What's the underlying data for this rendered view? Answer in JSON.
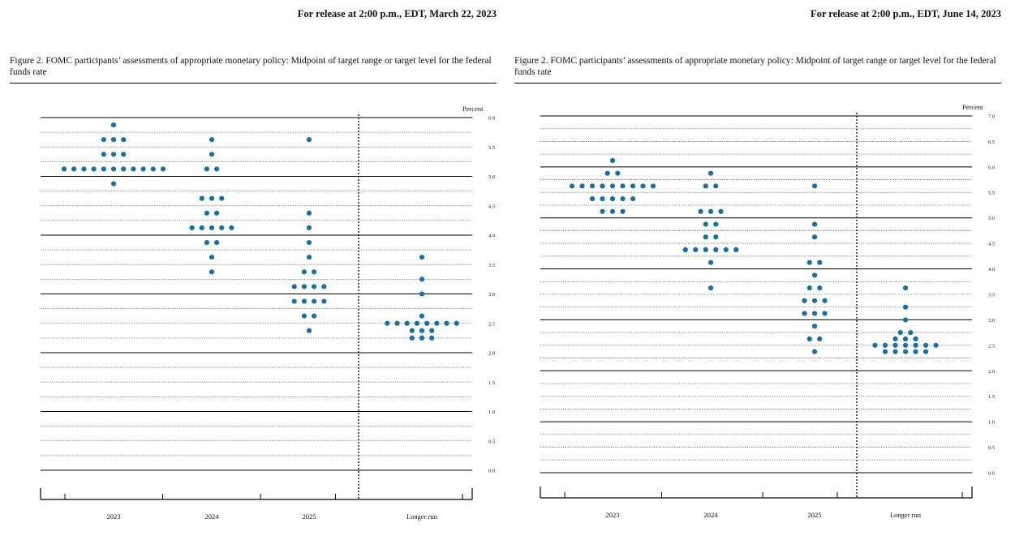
{
  "colors": {
    "dot": "#1a6fa0",
    "line": "#000000",
    "dotted_grid": "#555555"
  },
  "panels": [
    {
      "release": "For release at 2:00 p.m., EDT, March 22, 2023",
      "caption": "Figure 2.  FOMC participants’ assessments of appropriate monetary policy:  Midpoint of target range or target level for the federal funds rate",
      "chart_data": {
        "type": "scatter",
        "units_label": "Percent",
        "ylim": [
          0,
          6
        ],
        "y_ticks": [
          "0.0",
          "0.5",
          "1.0",
          "1.5",
          "2.0",
          "2.5",
          "3.0",
          "3.5",
          "4.0",
          "4.5",
          "5.0",
          "5.5",
          "6.0"
        ],
        "categories": [
          "2023",
          "2024",
          "2025",
          "Longer run"
        ],
        "dots": [
          [
            [
              5.875,
              1
            ],
            [
              5.625,
              3
            ],
            [
              5.375,
              3
            ],
            [
              5.125,
              11
            ],
            [
              4.875,
              1
            ]
          ],
          [
            [
              5.625,
              1
            ],
            [
              5.375,
              1
            ],
            [
              5.125,
              2
            ],
            [
              4.625,
              3
            ],
            [
              4.375,
              2
            ],
            [
              4.125,
              5
            ],
            [
              3.875,
              2
            ],
            [
              3.625,
              1
            ],
            [
              3.375,
              1
            ]
          ],
          [
            [
              5.625,
              1
            ],
            [
              4.375,
              1
            ],
            [
              4.125,
              1
            ],
            [
              3.875,
              1
            ],
            [
              3.625,
              1
            ],
            [
              3.375,
              2
            ],
            [
              3.125,
              4
            ],
            [
              2.875,
              4
            ],
            [
              2.625,
              2
            ],
            [
              2.375,
              1
            ]
          ],
          [
            [
              3.625,
              1
            ],
            [
              3.25,
              1
            ],
            [
              3.0,
              1
            ],
            [
              2.625,
              1
            ],
            [
              2.5,
              8
            ],
            [
              2.375,
              3
            ],
            [
              2.25,
              3
            ]
          ]
        ]
      }
    },
    {
      "release": "For release at 2:00 p.m., EDT, June 14, 2023",
      "caption": "Figure 2.  FOMC participants’ assessments of appropriate monetary policy:  Midpoint of target range or target level for the federal funds rate",
      "chart_data": {
        "type": "scatter",
        "units_label": "Percent",
        "ylim": [
          0,
          7
        ],
        "y_ticks": [
          "0.0",
          "0.5",
          "1.0",
          "1.5",
          "2.0",
          "2.5",
          "3.0",
          "3.5",
          "4.0",
          "4.5",
          "5.0",
          "5.5",
          "6.0",
          "6.5",
          "7.0"
        ],
        "categories": [
          "2023",
          "2024",
          "2025",
          "Longer run"
        ],
        "dots": [
          [
            [
              6.125,
              1
            ],
            [
              5.875,
              2
            ],
            [
              5.625,
              9
            ],
            [
              5.375,
              5
            ],
            [
              5.125,
              3
            ]
          ],
          [
            [
              5.875,
              1
            ],
            [
              5.625,
              2
            ],
            [
              5.125,
              3
            ],
            [
              4.875,
              2
            ],
            [
              4.625,
              2
            ],
            [
              4.375,
              6
            ],
            [
              4.125,
              1
            ],
            [
              3.625,
              1
            ]
          ],
          [
            [
              5.625,
              1
            ],
            [
              4.875,
              1
            ],
            [
              4.625,
              1
            ],
            [
              4.125,
              2
            ],
            [
              3.875,
              1
            ],
            [
              3.625,
              2
            ],
            [
              3.375,
              3
            ],
            [
              3.125,
              3
            ],
            [
              2.875,
              1
            ],
            [
              2.625,
              2
            ],
            [
              2.375,
              1
            ]
          ],
          [
            [
              3.625,
              1
            ],
            [
              3.25,
              1
            ],
            [
              3.0,
              1
            ],
            [
              2.75,
              2
            ],
            [
              2.625,
              3
            ],
            [
              2.5,
              7
            ],
            [
              2.375,
              5
            ]
          ]
        ]
      }
    }
  ]
}
